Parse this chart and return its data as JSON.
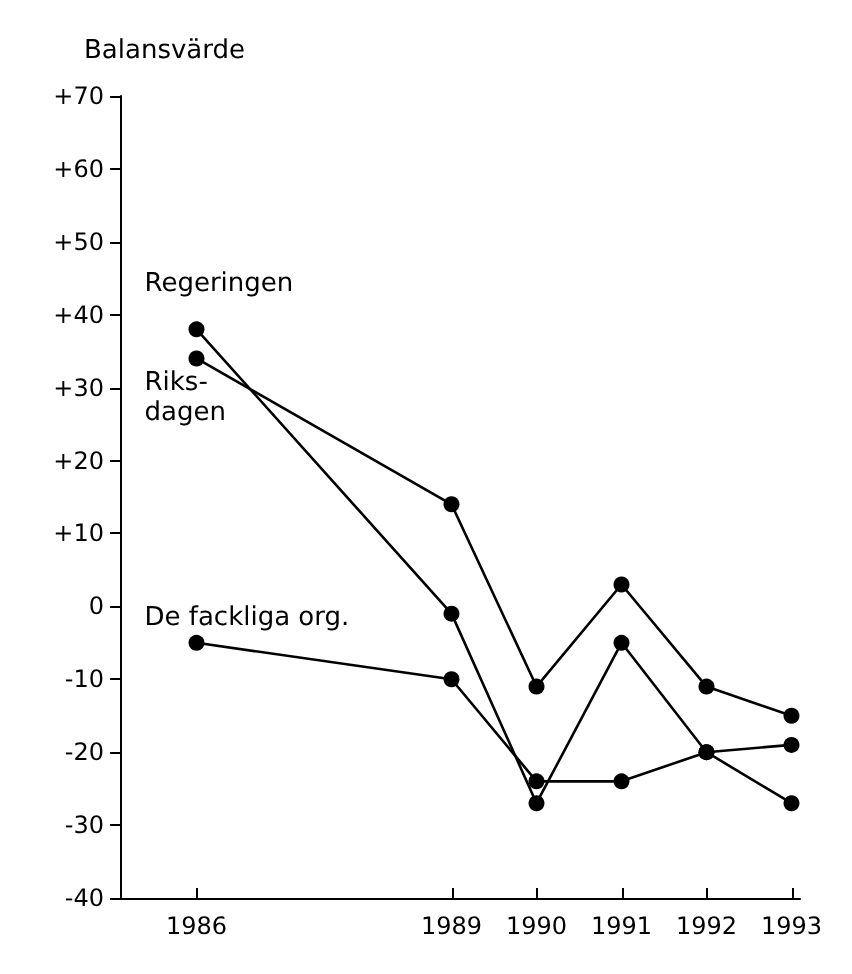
{
  "chart_data": {
    "type": "line",
    "ylabel": "Balansvärde",
    "x": [
      1986,
      1989,
      1990,
      1991,
      1992,
      1993
    ],
    "series": [
      {
        "name": "Regeringen",
        "color": "#000000",
        "values": [
          38,
          -1,
          -27,
          -5,
          -20,
          -27
        ]
      },
      {
        "name": "Riks-\ndagen",
        "color": "#000000",
        "values": [
          34,
          14,
          -11,
          3,
          -11,
          -15
        ]
      },
      {
        "name": "De fackliga org.",
        "color": "#000000",
        "values": [
          -5,
          -10,
          -24,
          -24,
          -20,
          -19
        ]
      }
    ],
    "xlim": [
      1985.1,
      1993.1
    ],
    "xticks": [
      1986,
      1989,
      1990,
      1991,
      1992,
      1993
    ],
    "ylim": [
      -40,
      70
    ],
    "yticks": [
      {
        "value": -40,
        "label": "-40"
      },
      {
        "value": -30,
        "label": "-30"
      },
      {
        "value": -20,
        "label": "-20"
      },
      {
        "value": -10,
        "label": "-10"
      },
      {
        "value": 0,
        "label": "0"
      },
      {
        "value": 10,
        "label": "+10"
      },
      {
        "value": 20,
        "label": "+20"
      },
      {
        "value": 30,
        "label": "+30"
      },
      {
        "value": 40,
        "label": "+40"
      },
      {
        "value": 50,
        "label": "+50"
      },
      {
        "value": 60,
        "label": "+60"
      },
      {
        "value": 70,
        "label": "+70"
      }
    ],
    "grid": false,
    "legend": false,
    "marker": "circle",
    "line_style": "solid"
  }
}
